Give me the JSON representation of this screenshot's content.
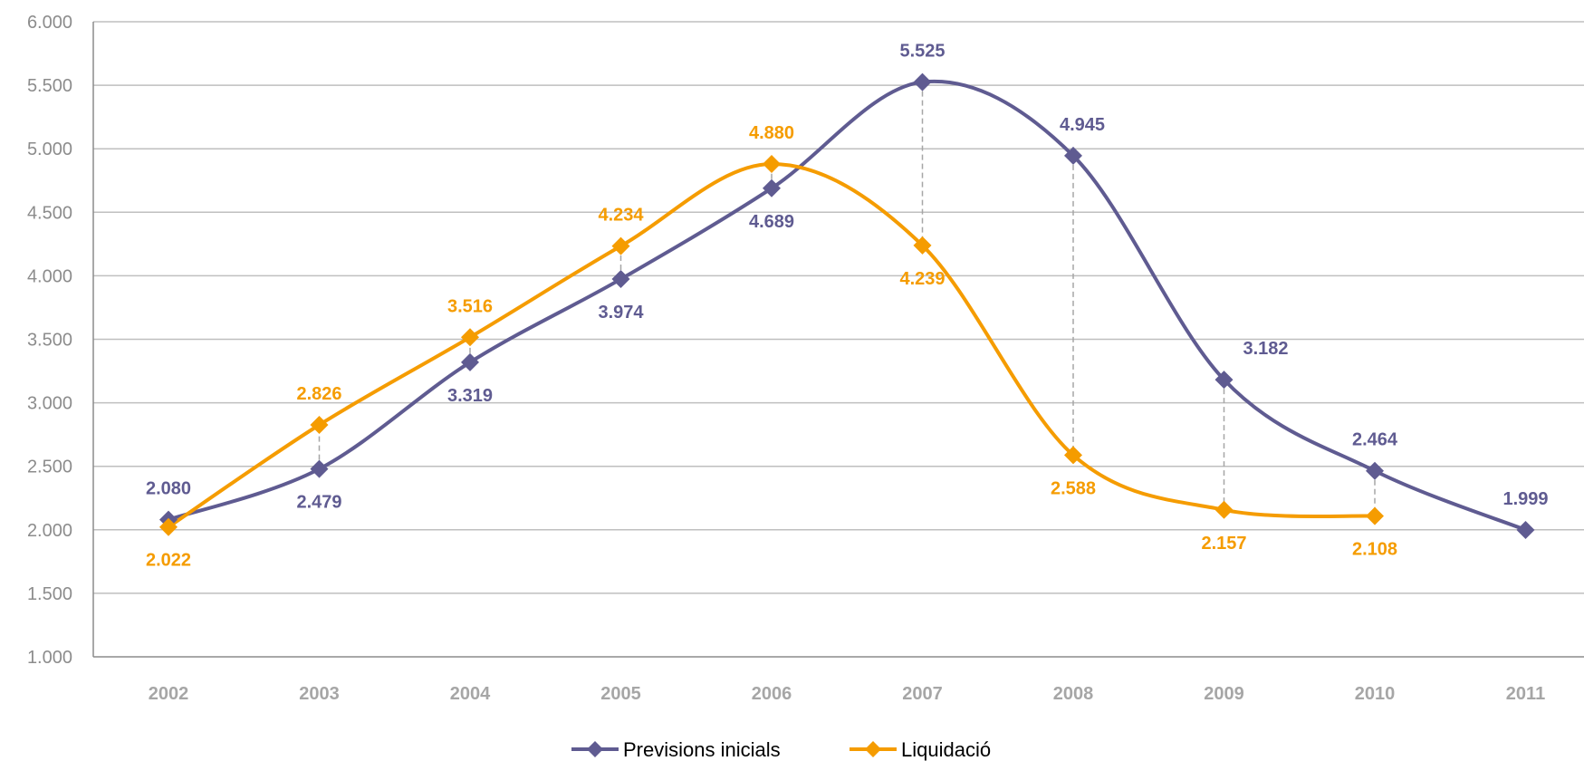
{
  "chart_data": {
    "type": "line",
    "categories": [
      "2002",
      "2003",
      "2004",
      "2005",
      "2006",
      "2007",
      "2008",
      "2009",
      "2010",
      "2011"
    ],
    "ylim": [
      1000,
      6000
    ],
    "yticks": [
      1000,
      1500,
      2000,
      2500,
      3000,
      3500,
      4000,
      4500,
      5000,
      5500,
      6000
    ],
    "ytick_labels": [
      "1.000",
      "1.500",
      "2.000",
      "2.500",
      "3.000",
      "3.500",
      "4.000",
      "4.500",
      "5.000",
      "5.500",
      "6.000"
    ],
    "grid": "horizontal",
    "smooth": true,
    "drop_lines": true,
    "legend_position": "bottom",
    "series": [
      {
        "name": "Previsions inicials",
        "color": "#5f5b91",
        "marker": "diamond",
        "values": [
          2080,
          2479,
          3319,
          3974,
          4689,
          5525,
          4945,
          3182,
          2464,
          1999
        ],
        "labels": [
          "2.080",
          "2.479",
          "3.319",
          "3.974",
          "4.689",
          "5.525",
          "4.945",
          "3.182",
          "2.464",
          "1.999"
        ]
      },
      {
        "name": "Liquidació",
        "color": "#f59c00",
        "marker": "diamond",
        "values": [
          2022,
          2826,
          3516,
          4234,
          4880,
          4239,
          2588,
          2157,
          2108,
          null
        ],
        "labels": [
          "2.022",
          "2.826",
          "3.516",
          "4.234",
          "4.880",
          "4.239",
          "2.588",
          "2.157",
          "2.108",
          null
        ]
      }
    ]
  }
}
